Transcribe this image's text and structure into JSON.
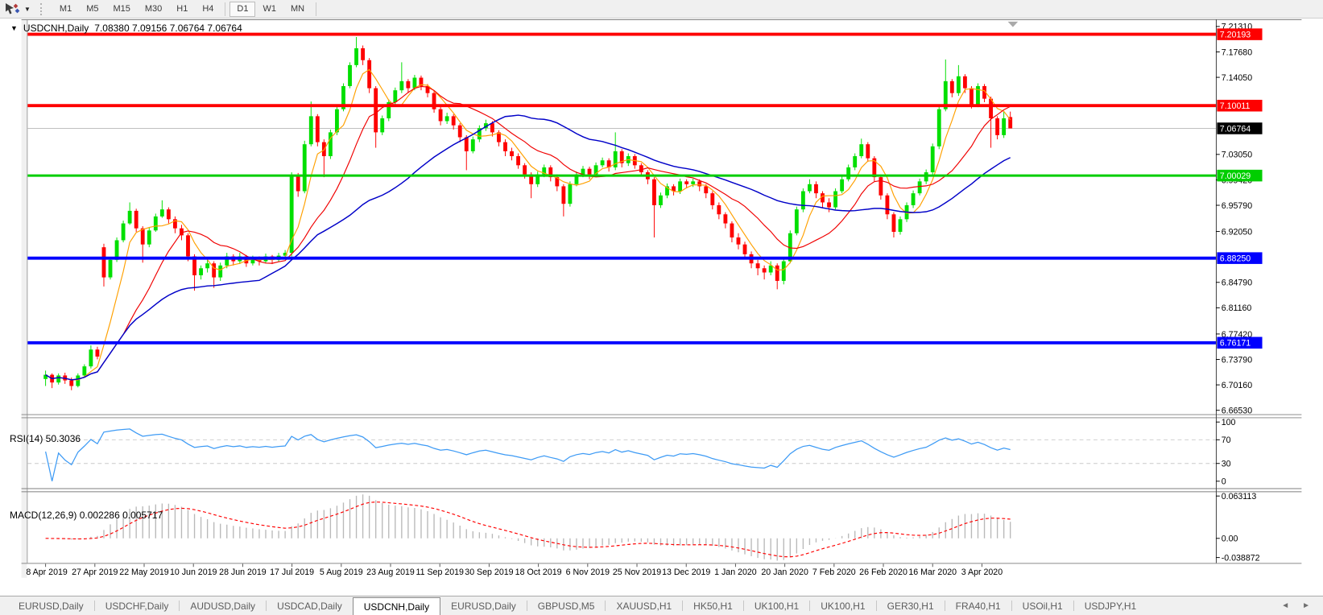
{
  "toolbar": {
    "timeframes": [
      "M1",
      "M5",
      "M15",
      "M30",
      "H1",
      "H4",
      "D1",
      "W1",
      "MN"
    ],
    "active_timeframe": "D1"
  },
  "chart": {
    "collapse_arrow": "▼",
    "title": "USDCNH,Daily",
    "ohlc_text": "7.08380 7.09156 7.06764 7.06764"
  },
  "indicator_labels": {
    "rsi": "RSI(14) 50.3036",
    "macd": "MACD(12,26,9) 0.002286 0.005717"
  },
  "tabs": {
    "items": [
      "EURUSD,Daily",
      "USDCHF,Daily",
      "AUDUSD,Daily",
      "USDCAD,Daily",
      "USDCNH,Daily",
      "EURUSD,Daily",
      "GBPUSD,M5",
      "XAUUSD,H1",
      "HK50,H1",
      "UK100,H1",
      "UK100,H1",
      "GER30,H1",
      "FRA40,H1",
      "USOil,H1",
      "USDJPY,H1"
    ],
    "active_index": 4,
    "scroll_left": "◄",
    "scroll_right": "►"
  },
  "chart_data": {
    "type": "candlestick",
    "symbol": "USDCNH",
    "timeframe": "Daily",
    "ohlc_readout": {
      "open": 7.0838,
      "high": 7.09156,
      "low": 7.06764,
      "close": 7.06764
    },
    "colors": {
      "bull": "#00DF00",
      "bear": "#FE0000",
      "ma_fast": "#FFA000",
      "ma_medium": "#F00000",
      "ma_slow": "#0000C8",
      "rsi": "#3E9BF5",
      "rsi_level": "#c9c9c9",
      "macd_histogram": "#b9b9b9",
      "macd_signal": "#FF0000",
      "level_red": "#FE0000",
      "level_green": "#00CE00",
      "level_blue": "#0000FE",
      "current_line": "#c0c0c0",
      "current_badge": "#000000",
      "badge_text": "#ffffff"
    },
    "y_axis": {
      "top": 7.2233,
      "bottom": 6.6597,
      "ticks": [
        {
          "label": "7.21310",
          "value": 7.2131
        },
        {
          "label": "7.17680",
          "value": 7.1768
        },
        {
          "label": "7.14050",
          "value": 7.1405
        },
        {
          "label": "7.03050",
          "value": 7.0305
        },
        {
          "label": "6.99420",
          "value": 6.9942
        },
        {
          "label": "6.95790",
          "value": 6.9579
        },
        {
          "label": "6.92050",
          "value": 6.9205
        },
        {
          "label": "6.84790",
          "value": 6.8479
        },
        {
          "label": "6.81160",
          "value": 6.8116
        },
        {
          "label": "6.77420",
          "value": 6.7742
        },
        {
          "label": "6.73790",
          "value": 6.7379
        },
        {
          "label": "6.70160",
          "value": 6.7016
        },
        {
          "label": "6.66530",
          "value": 6.6653
        }
      ]
    },
    "x_axis": {
      "ticks": [
        "8 Apr 2019",
        "27 Apr 2019",
        "22 May 2019",
        "10 Jun 2019",
        "28 Jun 2019",
        "17 Jul 2019",
        "5 Aug 2019",
        "23 Aug 2019",
        "11 Sep 2019",
        "30 Sep 2019",
        "18 Oct 2019",
        "6 Nov 2019",
        "25 Nov 2019",
        "13 Dec 2019",
        "1 Jan 2020",
        "20 Jan 2020",
        "7 Feb 2020",
        "26 Feb 2020",
        "16 Mar 2020",
        "3 Apr 2020"
      ]
    },
    "levels": [
      {
        "value": 7.20193,
        "label": "7.20193",
        "color_key": "level_red",
        "width": 4
      },
      {
        "value": 7.10011,
        "label": "7.10011",
        "color_key": "level_red",
        "width": 4
      },
      {
        "value": 7.00029,
        "label": "7.00029",
        "color_key": "level_green",
        "width": 3
      },
      {
        "value": 6.8825,
        "label": "6.88250",
        "color_key": "level_blue",
        "width": 4
      },
      {
        "value": 6.76171,
        "label": "6.76171",
        "color_key": "level_blue",
        "width": 4
      }
    ],
    "current_price": {
      "value": 7.06764,
      "label": "7.06764"
    },
    "moving_averages": [
      {
        "name": "fast",
        "period": 5,
        "color_key": "ma_fast",
        "width": 1.2
      },
      {
        "name": "medium",
        "period": 13,
        "color_key": "ma_medium",
        "width": 1.2
      },
      {
        "name": "slow",
        "period": 34,
        "color_key": "ma_slow",
        "width": 1.5
      }
    ],
    "rsi": {
      "period": 14,
      "levels": [
        70,
        30
      ],
      "scale_labels": [
        "100",
        "70",
        "30",
        "0"
      ],
      "last_value": 50.3036
    },
    "macd": {
      "fast": 12,
      "slow": 26,
      "signal": 9,
      "scale_labels": [
        "0.063113",
        "0.00",
        "-0.038872"
      ],
      "last_main": 0.002286,
      "last_signal": 0.005717
    },
    "candles": [
      [
        6.71,
        6.722,
        6.7,
        6.716
      ],
      [
        6.716,
        6.718,
        6.697,
        6.705
      ],
      [
        6.705,
        6.718,
        6.702,
        6.715
      ],
      [
        6.715,
        6.719,
        6.703,
        6.708
      ],
      [
        6.708,
        6.712,
        6.694,
        6.7
      ],
      [
        6.7,
        6.718,
        6.698,
        6.715
      ],
      [
        6.715,
        6.731,
        6.712,
        6.728
      ],
      [
        6.728,
        6.758,
        6.725,
        6.752
      ],
      [
        6.752,
        6.756,
        6.738,
        6.742
      ],
      [
        6.898,
        6.903,
        6.842,
        6.855
      ],
      [
        6.855,
        6.884,
        6.852,
        6.88
      ],
      [
        6.88,
        6.912,
        6.877,
        6.908
      ],
      [
        6.908,
        6.936,
        6.905,
        6.932
      ],
      [
        6.932,
        6.962,
        6.93,
        6.95
      ],
      [
        6.95,
        6.953,
        6.92,
        6.925
      ],
      [
        6.925,
        6.928,
        6.876,
        6.902
      ],
      [
        6.902,
        6.926,
        6.898,
        6.922
      ],
      [
        6.922,
        6.946,
        6.92,
        6.942
      ],
      [
        6.942,
        6.965,
        6.94,
        6.952
      ],
      [
        6.952,
        6.955,
        6.932,
        6.938
      ],
      [
        6.938,
        6.942,
        6.918,
        6.925
      ],
      [
        6.925,
        6.93,
        6.908,
        6.915
      ],
      [
        6.915,
        6.918,
        6.878,
        6.885
      ],
      [
        6.885,
        6.888,
        6.836,
        6.858
      ],
      [
        6.858,
        6.872,
        6.852,
        6.868
      ],
      [
        6.868,
        6.88,
        6.862,
        6.875
      ],
      [
        6.875,
        6.878,
        6.84,
        6.855
      ],
      [
        6.855,
        6.876,
        6.85,
        6.872
      ],
      [
        6.872,
        6.89,
        6.868,
        6.885
      ],
      [
        6.885,
        6.888,
        6.872,
        6.878
      ],
      [
        6.878,
        6.89,
        6.874,
        6.885
      ],
      [
        6.885,
        6.887,
        6.87,
        6.875
      ],
      [
        6.875,
        6.886,
        6.872,
        6.882
      ],
      [
        6.882,
        6.885,
        6.872,
        6.878
      ],
      [
        6.878,
        6.889,
        6.875,
        6.885
      ],
      [
        6.885,
        6.887,
        6.874,
        6.88
      ],
      [
        6.88,
        6.89,
        6.877,
        6.886
      ],
      [
        6.886,
        6.894,
        6.882,
        6.89
      ],
      [
        6.89,
        7.005,
        6.885,
        7.0
      ],
      [
        7.0,
        7.004,
        6.97,
        6.978
      ],
      [
        6.978,
        7.05,
        6.975,
        7.045
      ],
      [
        7.045,
        7.106,
        7.042,
        7.085
      ],
      [
        7.085,
        7.088,
        7.042,
        7.048
      ],
      [
        7.048,
        7.052,
        6.998,
        7.028
      ],
      [
        7.028,
        7.066,
        7.024,
        7.062
      ],
      [
        7.062,
        7.099,
        7.058,
        7.095
      ],
      [
        7.095,
        7.132,
        7.092,
        7.128
      ],
      [
        7.128,
        7.162,
        7.125,
        7.158
      ],
      [
        7.158,
        7.198,
        7.155,
        7.182
      ],
      [
        7.182,
        7.186,
        7.158,
        7.165
      ],
      [
        7.165,
        7.168,
        7.118,
        7.125
      ],
      [
        7.125,
        7.128,
        7.04,
        7.062
      ],
      [
        7.062,
        7.086,
        7.058,
        7.082
      ],
      [
        7.082,
        7.109,
        7.078,
        7.105
      ],
      [
        7.105,
        7.126,
        7.102,
        7.122
      ],
      [
        7.122,
        7.162,
        7.118,
        7.135
      ],
      [
        7.135,
        7.138,
        7.118,
        7.125
      ],
      [
        7.125,
        7.144,
        7.122,
        7.14
      ],
      [
        7.14,
        7.143,
        7.122,
        7.128
      ],
      [
        7.128,
        7.131,
        7.112,
        7.118
      ],
      [
        7.118,
        7.121,
        7.09,
        7.095
      ],
      [
        7.095,
        7.098,
        7.072,
        7.078
      ],
      [
        7.078,
        7.09,
        7.074,
        7.085
      ],
      [
        7.085,
        7.088,
        7.066,
        7.072
      ],
      [
        7.072,
        7.075,
        7.048,
        7.055
      ],
      [
        7.055,
        7.058,
        7.008,
        7.035
      ],
      [
        7.035,
        7.056,
        7.032,
        7.052
      ],
      [
        7.052,
        7.072,
        7.048,
        7.068
      ],
      [
        7.068,
        7.08,
        7.064,
        7.075
      ],
      [
        7.075,
        7.078,
        7.056,
        7.062
      ],
      [
        7.062,
        7.065,
        7.042,
        7.048
      ],
      [
        7.048,
        7.052,
        7.028,
        7.035
      ],
      [
        7.035,
        7.04,
        7.022,
        7.028
      ],
      [
        7.028,
        7.032,
        7.01,
        7.015
      ],
      [
        7.015,
        7.018,
        6.996,
        7.002
      ],
      [
        7.002,
        7.005,
        6.968,
        6.988
      ],
      [
        6.988,
        7.006,
        6.984,
        7.002
      ],
      [
        7.002,
        7.016,
        6.998,
        7.012
      ],
      [
        7.012,
        7.015,
        6.992,
        6.998
      ],
      [
        6.998,
        7.002,
        6.978,
        6.985
      ],
      [
        6.985,
        6.988,
        6.942,
        6.96
      ],
      [
        6.96,
        6.992,
        6.956,
        6.988
      ],
      [
        6.988,
        7.006,
        6.985,
        7.002
      ],
      [
        7.002,
        7.014,
        6.998,
        7.01
      ],
      [
        7.01,
        7.013,
        6.995,
        7.002
      ],
      [
        7.002,
        7.019,
        6.999,
        7.015
      ],
      [
        7.015,
        7.026,
        7.012,
        7.022
      ],
      [
        7.022,
        7.025,
        7.006,
        7.012
      ],
      [
        7.012,
        7.062,
        7.008,
        7.035
      ],
      [
        7.035,
        7.038,
        7.012,
        7.018
      ],
      [
        7.018,
        7.032,
        7.014,
        7.028
      ],
      [
        7.028,
        7.031,
        7.01,
        7.015
      ],
      [
        7.015,
        7.018,
        7.0,
        7.005
      ],
      [
        7.005,
        7.008,
        6.988,
        6.995
      ],
      [
        6.995,
        6.998,
        6.912,
        6.958
      ],
      [
        6.958,
        6.976,
        6.954,
        6.972
      ],
      [
        6.972,
        6.989,
        6.968,
        6.985
      ],
      [
        6.985,
        6.988,
        6.972,
        6.978
      ],
      [
        6.978,
        6.996,
        6.974,
        6.992
      ],
      [
        6.992,
        6.995,
        6.982,
        6.988
      ],
      [
        6.988,
        6.996,
        6.984,
        6.992
      ],
      [
        6.992,
        6.995,
        6.978,
        6.985
      ],
      [
        6.985,
        6.988,
        6.968,
        6.975
      ],
      [
        6.975,
        6.978,
        6.952,
        6.958
      ],
      [
        6.958,
        6.962,
        6.938,
        6.945
      ],
      [
        6.945,
        6.948,
        6.925,
        6.932
      ],
      [
        6.932,
        6.935,
        6.905,
        6.912
      ],
      [
        6.912,
        6.918,
        6.895,
        6.902
      ],
      [
        6.902,
        6.906,
        6.882,
        6.888
      ],
      [
        6.888,
        6.892,
        6.868,
        6.875
      ],
      [
        6.875,
        6.88,
        6.858,
        6.868
      ],
      [
        6.868,
        6.872,
        6.852,
        6.862
      ],
      [
        6.862,
        6.878,
        6.858,
        6.872
      ],
      [
        6.872,
        6.875,
        6.838,
        6.85
      ],
      [
        6.85,
        6.882,
        6.845,
        6.878
      ],
      [
        6.878,
        6.922,
        6.875,
        6.918
      ],
      [
        6.918,
        6.956,
        6.915,
        6.952
      ],
      [
        6.952,
        6.982,
        6.948,
        6.978
      ],
      [
        6.978,
        6.995,
        6.975,
        6.988
      ],
      [
        6.988,
        6.992,
        6.968,
        6.975
      ],
      [
        6.975,
        6.978,
        6.955,
        6.962
      ],
      [
        6.962,
        6.968,
        6.948,
        6.955
      ],
      [
        6.955,
        6.982,
        6.952,
        6.978
      ],
      [
        6.978,
        6.999,
        6.975,
        6.995
      ],
      [
        6.995,
        7.016,
        6.992,
        7.012
      ],
      [
        7.012,
        7.032,
        7.008,
        7.028
      ],
      [
        7.028,
        7.053,
        7.025,
        7.045
      ],
      [
        7.045,
        7.048,
        7.02,
        7.025
      ],
      [
        7.025,
        7.028,
        6.992,
        6.998
      ],
      [
        6.998,
        7.002,
        6.966,
        6.972
      ],
      [
        6.972,
        6.975,
        6.938,
        6.945
      ],
      [
        6.945,
        6.948,
        6.912,
        6.92
      ],
      [
        6.92,
        6.942,
        6.916,
        6.938
      ],
      [
        6.938,
        6.962,
        6.934,
        6.958
      ],
      [
        6.958,
        6.979,
        6.954,
        6.975
      ],
      [
        6.975,
        6.996,
        6.972,
        6.992
      ],
      [
        6.992,
        7.009,
        6.988,
        7.005
      ],
      [
        7.005,
        7.046,
        7.002,
        7.042
      ],
      [
        7.042,
        7.099,
        7.038,
        7.095
      ],
      [
        7.095,
        7.166,
        7.092,
        7.135
      ],
      [
        7.135,
        7.138,
        7.112,
        7.118
      ],
      [
        7.118,
        7.158,
        7.114,
        7.142
      ],
      [
        7.142,
        7.145,
        7.118,
        7.125
      ],
      [
        7.125,
        7.128,
        7.096,
        7.102
      ],
      [
        7.102,
        7.132,
        7.098,
        7.128
      ],
      [
        7.128,
        7.131,
        7.105,
        7.11
      ],
      [
        7.11,
        7.113,
        7.04,
        7.082
      ],
      [
        7.082,
        7.085,
        7.052,
        7.058
      ],
      [
        7.058,
        7.092,
        7.054,
        7.082
      ],
      [
        7.0838,
        7.0916,
        7.0676,
        7.0676
      ]
    ]
  }
}
